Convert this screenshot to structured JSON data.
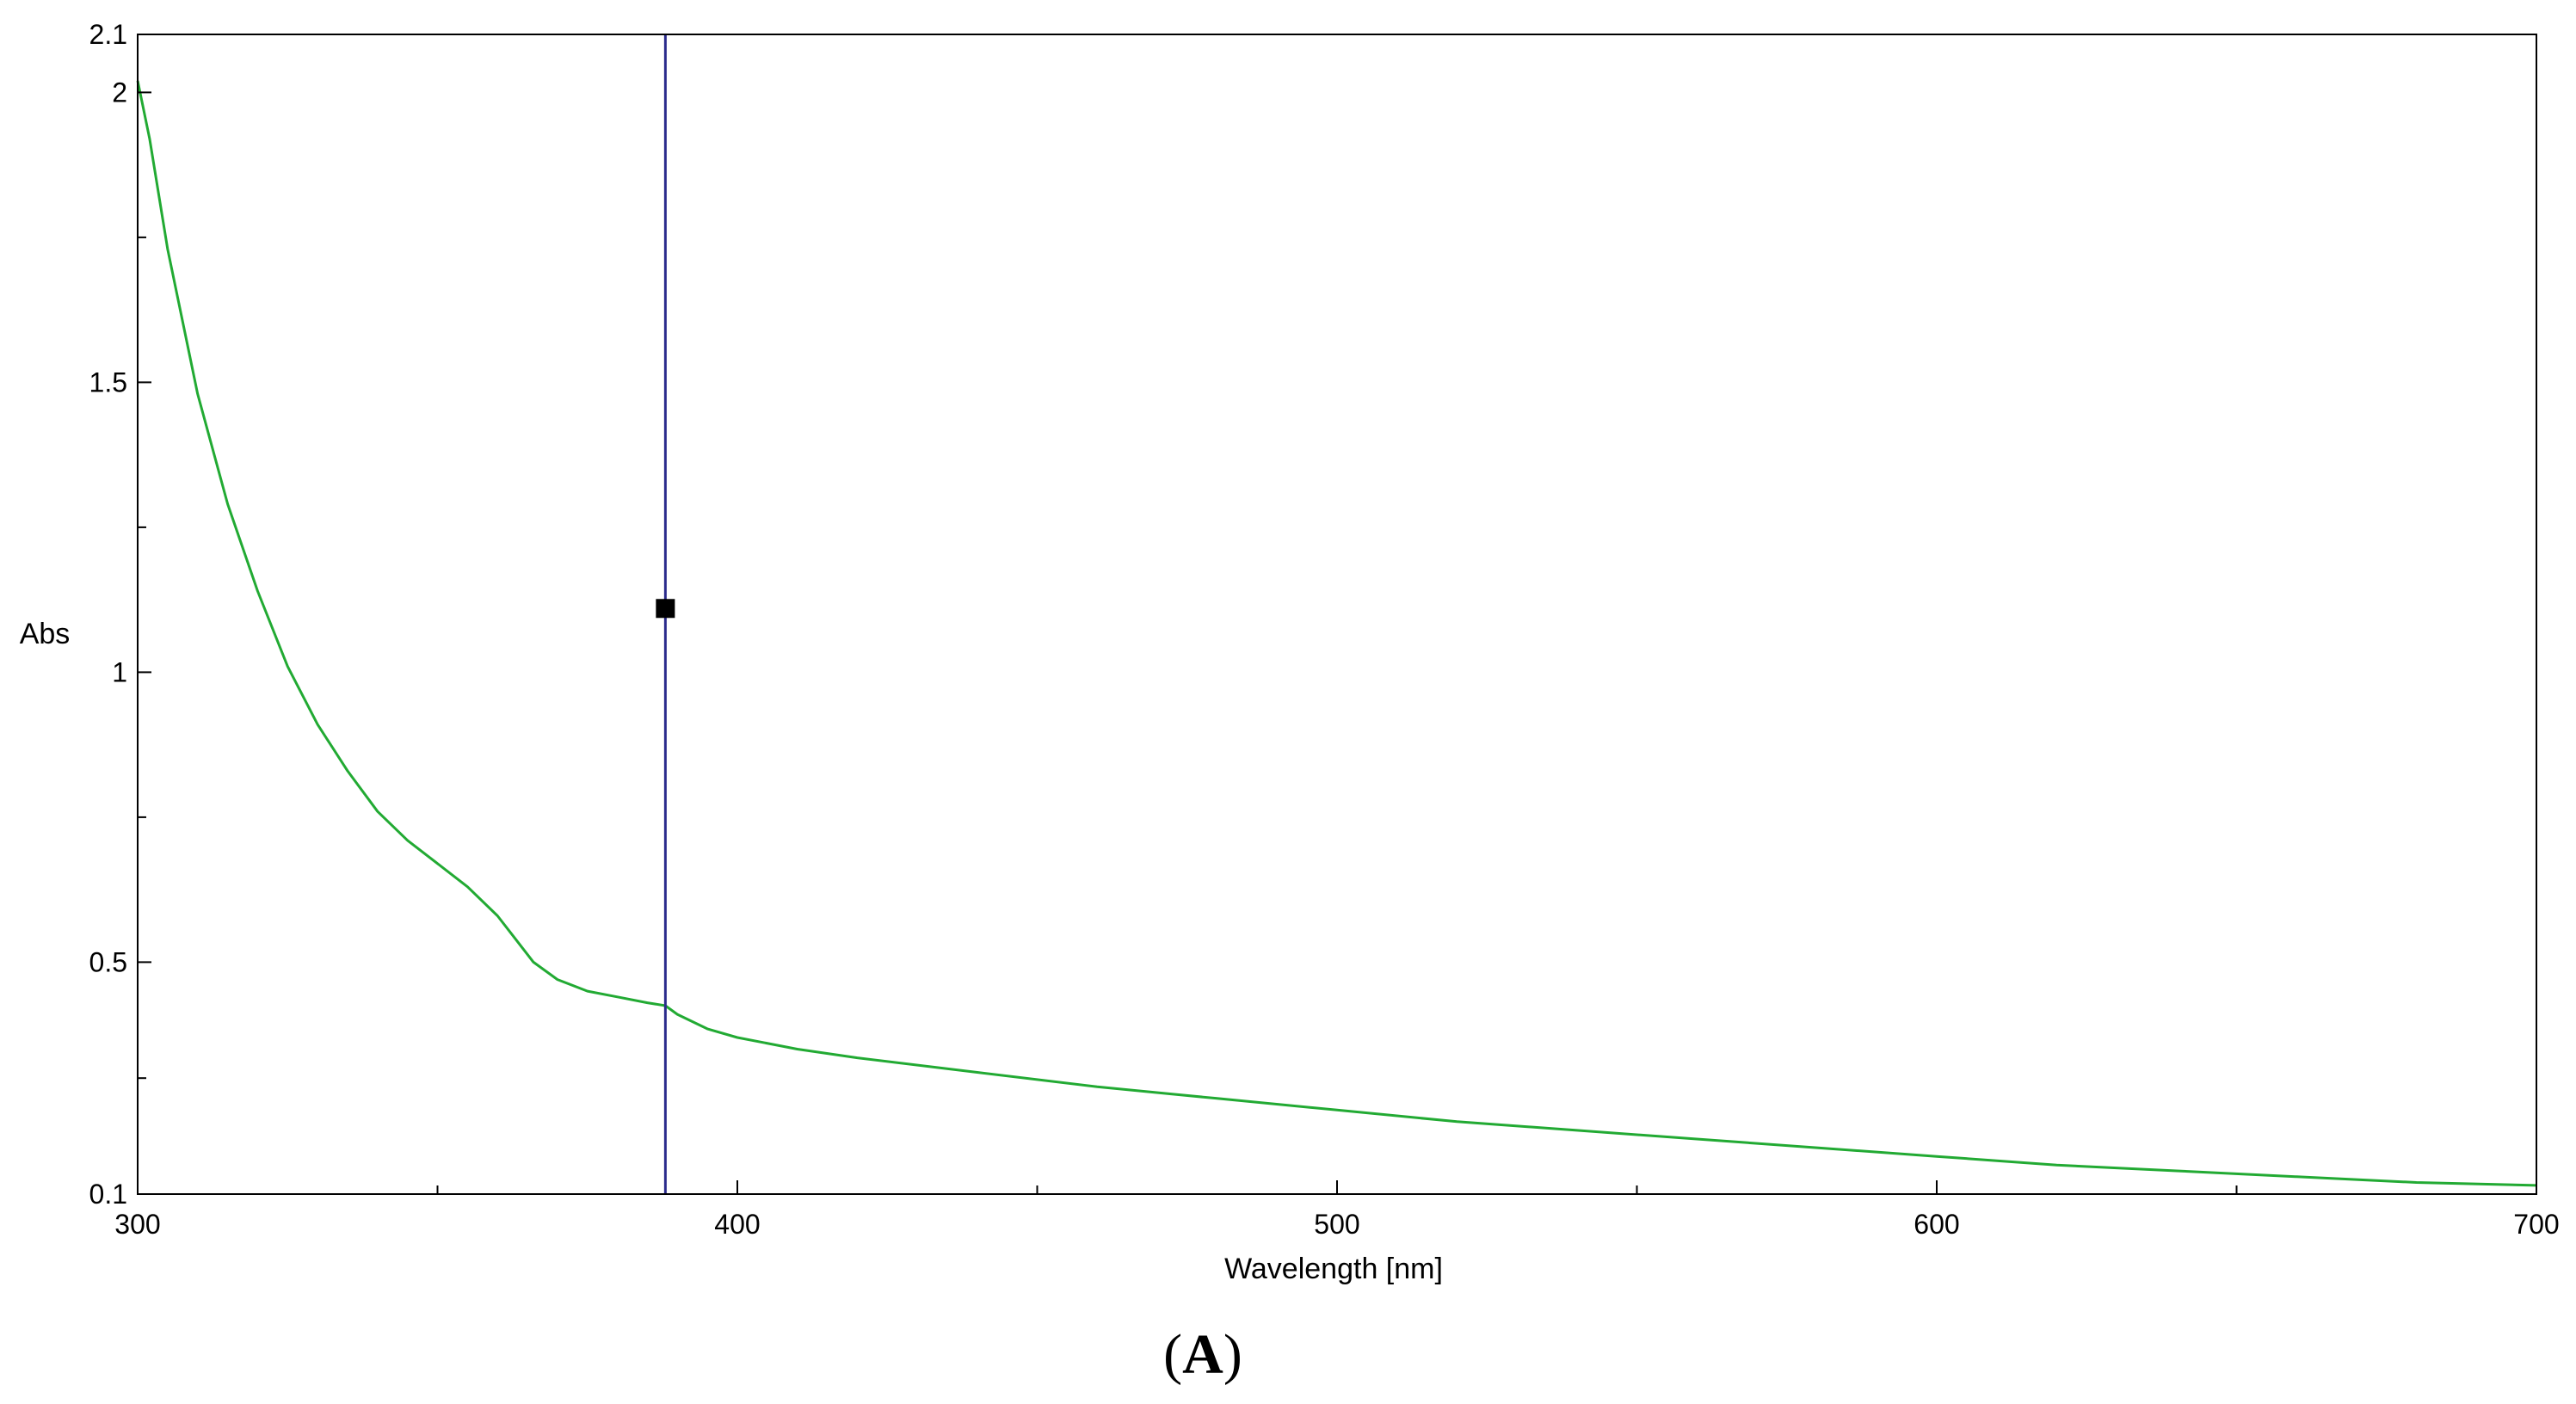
{
  "chart_data": {
    "type": "line",
    "xlabel": "Wavelength [nm]",
    "ylabel": "Abs",
    "xlim": [
      300,
      700
    ],
    "ylim": [
      0.1,
      2.1
    ],
    "x_ticks": [
      300,
      400,
      500,
      600,
      700
    ],
    "x_tick_labels": [
      "300",
      "400",
      "500",
      "600",
      "700"
    ],
    "x_minor_ticks": [
      350,
      450,
      550,
      650
    ],
    "y_ticks": [
      0.1,
      0.5,
      1,
      1.5,
      2,
      2.1
    ],
    "y_tick_labels": [
      "0.1",
      "0.5",
      "1",
      "1.5",
      "2",
      "2.1"
    ],
    "y_minor_ticks": [
      0.3,
      0.75,
      1.25,
      1.75
    ],
    "grid": false,
    "series": [
      {
        "color": "#22aa33",
        "x": [
          300,
          302,
          305,
          310,
          315,
          320,
          325,
          330,
          335,
          340,
          345,
          350,
          355,
          360,
          363,
          366,
          370,
          375,
          380,
          385,
          388,
          390,
          395,
          400,
          410,
          420,
          440,
          460,
          480,
          500,
          520,
          540,
          560,
          580,
          600,
          620,
          640,
          660,
          680,
          700
        ],
        "y": [
          2.02,
          1.92,
          1.73,
          1.48,
          1.29,
          1.14,
          1.01,
          0.91,
          0.83,
          0.76,
          0.71,
          0.67,
          0.63,
          0.58,
          0.54,
          0.5,
          0.47,
          0.45,
          0.44,
          0.43,
          0.425,
          0.41,
          0.385,
          0.37,
          0.35,
          0.335,
          0.31,
          0.285,
          0.265,
          0.245,
          0.225,
          0.21,
          0.195,
          0.18,
          0.165,
          0.15,
          0.14,
          0.13,
          0.12,
          0.115
        ]
      }
    ],
    "cursor": {
      "x": 388,
      "color": "#2b2b8c"
    },
    "marker": {
      "x": 388,
      "y": 1.11,
      "color": "#000000"
    }
  },
  "panel_label": {
    "open": "(",
    "letter": "A",
    "close": ")"
  }
}
